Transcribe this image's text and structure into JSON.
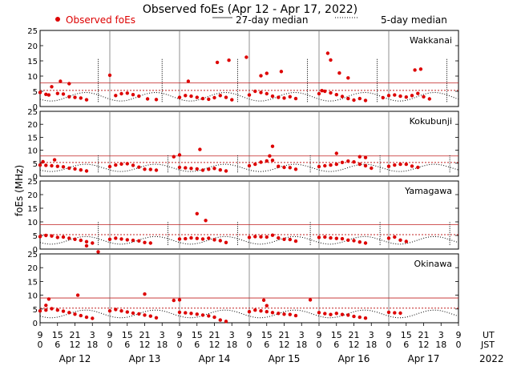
{
  "chart_data": {
    "type": "scatter",
    "title": "Observed foEs (Apr 12 - Apr 17, 2022)",
    "ylabel": "foEs (MHz)",
    "ylim": [
      0,
      25
    ],
    "yticks": [
      0,
      5,
      10,
      15,
      20,
      25
    ],
    "xlim_hours": [
      0,
      144
    ],
    "legend": [
      {
        "key": "observed",
        "label": "Observed foEs",
        "color": "#dd0000"
      },
      {
        "key": "median27",
        "label": "27-day median"
      },
      {
        "key": "median5",
        "label": "5-day median"
      }
    ],
    "x_tick_labels_ut": [
      "9",
      "15",
      "21",
      "3",
      "9",
      "15",
      "21",
      "3",
      "9",
      "15",
      "21",
      "3",
      "9",
      "15",
      "21",
      "3",
      "9",
      "15",
      "21",
      "3",
      "9",
      "15",
      "21",
      "3",
      "9"
    ],
    "x_tick_labels_jst": [
      "0",
      "6",
      "12",
      "18",
      "0",
      "6",
      "12",
      "18",
      "0",
      "6",
      "12",
      "18",
      "0",
      "6",
      "12",
      "18",
      "0",
      "6",
      "12",
      "18",
      "0",
      "6",
      "12",
      "18",
      "0"
    ],
    "x_tick_hours": [
      0,
      6,
      12,
      18,
      24,
      30,
      36,
      42,
      48,
      54,
      60,
      66,
      72,
      78,
      84,
      90,
      96,
      102,
      108,
      114,
      120,
      126,
      132,
      138,
      144
    ],
    "ut_label": "UT",
    "jst_label": "JST",
    "dates": [
      "Apr 12",
      "Apr 13",
      "Apr 14",
      "Apr 15",
      "Apr 16",
      "Apr 17"
    ],
    "year": "2022",
    "stations": [
      {
        "name": "Wakkanai",
        "upper_line": 7.8,
        "median_level": 5.3,
        "spike_hours": [
          20,
          42,
          68,
          92,
          116,
          140
        ],
        "outliers": [
          [
            4,
            6.5
          ],
          [
            7,
            8.3
          ],
          [
            10,
            7.5
          ],
          [
            24,
            10.3
          ],
          [
            51,
            8.3
          ],
          [
            61,
            14.5
          ],
          [
            65,
            15.2
          ],
          [
            71,
            16.2
          ],
          [
            76,
            10.1
          ],
          [
            78,
            10.9
          ],
          [
            83,
            11.5
          ],
          [
            99,
            17.5
          ],
          [
            100,
            15.3
          ],
          [
            103,
            11.0
          ],
          [
            106,
            9.4
          ],
          [
            129,
            12.0
          ],
          [
            131,
            12.3
          ]
        ],
        "observed": [
          [
            0,
            4.6
          ],
          [
            2,
            4.0
          ],
          [
            3,
            3.8
          ],
          [
            6,
            4.3
          ],
          [
            8,
            4.1
          ],
          [
            10,
            3.2
          ],
          [
            12,
            3.0
          ],
          [
            14,
            2.8
          ],
          [
            16,
            2.2
          ],
          [
            26,
            3.6
          ],
          [
            28,
            4.2
          ],
          [
            30,
            4.4
          ],
          [
            32,
            3.9
          ],
          [
            34,
            3.4
          ],
          [
            37,
            2.5
          ],
          [
            40,
            2.3
          ],
          [
            48,
            3.0
          ],
          [
            50,
            3.6
          ],
          [
            52,
            3.4
          ],
          [
            54,
            3.0
          ],
          [
            56,
            2.6
          ],
          [
            58,
            2.4
          ],
          [
            60,
            2.9
          ],
          [
            62,
            3.6
          ],
          [
            64,
            3.0
          ],
          [
            66,
            2.2
          ],
          [
            72,
            3.8
          ],
          [
            74,
            5.0
          ],
          [
            76,
            4.6
          ],
          [
            78,
            4.2
          ],
          [
            80,
            3.4
          ],
          [
            82,
            3.0
          ],
          [
            84,
            2.8
          ],
          [
            86,
            3.2
          ],
          [
            88,
            2.6
          ],
          [
            96,
            4.2
          ],
          [
            97,
            5.2
          ],
          [
            98,
            5.0
          ],
          [
            100,
            4.5
          ],
          [
            102,
            3.9
          ],
          [
            104,
            3.3
          ],
          [
            106,
            2.6
          ],
          [
            108,
            2.1
          ],
          [
            110,
            2.6
          ],
          [
            112,
            2.0
          ],
          [
            118,
            2.9
          ],
          [
            120,
            3.6
          ],
          [
            122,
            3.8
          ],
          [
            124,
            3.4
          ],
          [
            126,
            3.1
          ],
          [
            128,
            3.6
          ],
          [
            130,
            4.3
          ],
          [
            132,
            3.2
          ],
          [
            134,
            2.5
          ]
        ]
      },
      {
        "name": "Kokubunji",
        "upper_line": 7.8,
        "median_level": 5.3,
        "spike_hours": [
          20,
          44,
          68,
          93,
          117,
          141
        ],
        "outliers": [
          [
            1,
            5.6
          ],
          [
            5,
            6.3
          ],
          [
            46,
            7.5
          ],
          [
            48,
            8.2
          ],
          [
            55,
            10.3
          ],
          [
            80,
            11.5
          ],
          [
            79,
            7.8
          ],
          [
            102,
            8.8
          ],
          [
            110,
            7.5
          ],
          [
            112,
            7.2
          ]
        ],
        "observed": [
          [
            0,
            4.3
          ],
          [
            2,
            4.2
          ],
          [
            4,
            4.0
          ],
          [
            6,
            3.8
          ],
          [
            8,
            3.6
          ],
          [
            10,
            3.1
          ],
          [
            12,
            2.8
          ],
          [
            14,
            2.4
          ],
          [
            16,
            2.0
          ],
          [
            24,
            3.7
          ],
          [
            26,
            4.3
          ],
          [
            28,
            4.7
          ],
          [
            30,
            4.8
          ],
          [
            32,
            4.2
          ],
          [
            34,
            3.5
          ],
          [
            36,
            2.7
          ],
          [
            38,
            2.6
          ],
          [
            40,
            2.3
          ],
          [
            48,
            3.4
          ],
          [
            50,
            3.2
          ],
          [
            52,
            3.0
          ],
          [
            54,
            2.8
          ],
          [
            56,
            2.3
          ],
          [
            58,
            2.7
          ],
          [
            60,
            3.0
          ],
          [
            62,
            2.4
          ],
          [
            64,
            2.0
          ],
          [
            72,
            4.0
          ],
          [
            74,
            4.6
          ],
          [
            76,
            5.4
          ],
          [
            78,
            5.9
          ],
          [
            80,
            6.1
          ],
          [
            82,
            3.8
          ],
          [
            84,
            3.4
          ],
          [
            86,
            3.3
          ],
          [
            88,
            2.7
          ],
          [
            96,
            3.7
          ],
          [
            98,
            4.0
          ],
          [
            100,
            4.3
          ],
          [
            102,
            4.6
          ],
          [
            104,
            5.3
          ],
          [
            106,
            5.8
          ],
          [
            108,
            5.5
          ],
          [
            110,
            4.6
          ],
          [
            112,
            4.0
          ],
          [
            114,
            3.1
          ],
          [
            120,
            3.8
          ],
          [
            122,
            4.3
          ],
          [
            124,
            4.6
          ],
          [
            126,
            4.6
          ],
          [
            128,
            3.9
          ],
          [
            130,
            3.4
          ]
        ]
      },
      {
        "name": "Yamagawa",
        "upper_line": 9.0,
        "median_level": 5.3,
        "spike_hours": [
          20,
          44,
          68,
          93,
          117,
          141
        ],
        "outliers": [
          [
            16,
            1.2
          ],
          [
            20,
            -1.0
          ],
          [
            54,
            13.0
          ],
          [
            57,
            10.5
          ]
        ],
        "observed": [
          [
            0,
            4.6
          ],
          [
            2,
            5.0
          ],
          [
            4,
            4.8
          ],
          [
            6,
            4.3
          ],
          [
            8,
            4.4
          ],
          [
            10,
            4.0
          ],
          [
            12,
            3.6
          ],
          [
            14,
            3.2
          ],
          [
            16,
            2.7
          ],
          [
            18,
            2.2
          ],
          [
            24,
            3.6
          ],
          [
            26,
            4.0
          ],
          [
            28,
            3.7
          ],
          [
            30,
            3.4
          ],
          [
            32,
            3.2
          ],
          [
            34,
            3.0
          ],
          [
            36,
            2.4
          ],
          [
            38,
            2.2
          ],
          [
            48,
            3.7
          ],
          [
            50,
            3.8
          ],
          [
            52,
            4.1
          ],
          [
            54,
            3.9
          ],
          [
            56,
            3.7
          ],
          [
            58,
            4.0
          ],
          [
            60,
            3.4
          ],
          [
            62,
            3.1
          ],
          [
            64,
            2.4
          ],
          [
            72,
            4.3
          ],
          [
            74,
            4.6
          ],
          [
            76,
            4.5
          ],
          [
            78,
            4.4
          ],
          [
            80,
            5.1
          ],
          [
            82,
            4.1
          ],
          [
            84,
            3.6
          ],
          [
            86,
            3.5
          ],
          [
            88,
            2.9
          ],
          [
            96,
            4.3
          ],
          [
            98,
            4.4
          ],
          [
            100,
            4.1
          ],
          [
            102,
            3.9
          ],
          [
            104,
            3.8
          ],
          [
            106,
            3.3
          ],
          [
            108,
            3.1
          ],
          [
            110,
            2.6
          ],
          [
            112,
            2.2
          ],
          [
            120,
            4.0
          ],
          [
            122,
            4.4
          ],
          [
            124,
            3.3
          ],
          [
            126,
            2.8
          ]
        ]
      },
      {
        "name": "Okinawa",
        "upper_line": 9.0,
        "median_level": 5.3,
        "spike_hours": [],
        "outliers": [
          [
            2,
            6.3
          ],
          [
            3,
            8.6
          ],
          [
            13,
            10.0
          ],
          [
            36,
            10.4
          ],
          [
            46,
            8.1
          ],
          [
            48,
            8.3
          ],
          [
            77,
            8.2
          ],
          [
            93,
            8.3
          ],
          [
            78,
            6.2
          ]
        ],
        "observed": [
          [
            0,
            4.3
          ],
          [
            2,
            4.6
          ],
          [
            4,
            5.1
          ],
          [
            6,
            4.6
          ],
          [
            8,
            4.2
          ],
          [
            10,
            3.7
          ],
          [
            12,
            3.1
          ],
          [
            14,
            2.6
          ],
          [
            16,
            2.0
          ],
          [
            18,
            1.6
          ],
          [
            24,
            4.3
          ],
          [
            26,
            4.8
          ],
          [
            28,
            4.3
          ],
          [
            30,
            3.9
          ],
          [
            32,
            3.5
          ],
          [
            34,
            3.2
          ],
          [
            36,
            2.8
          ],
          [
            38,
            2.4
          ],
          [
            40,
            1.8
          ],
          [
            48,
            3.8
          ],
          [
            50,
            3.6
          ],
          [
            52,
            3.4
          ],
          [
            54,
            3.1
          ],
          [
            56,
            2.8
          ],
          [
            58,
            2.5
          ],
          [
            60,
            2.0
          ],
          [
            62,
            1.0
          ],
          [
            64,
            0.5
          ],
          [
            72,
            4.0
          ],
          [
            74,
            4.6
          ],
          [
            76,
            4.3
          ],
          [
            78,
            4.0
          ],
          [
            80,
            3.7
          ],
          [
            82,
            3.4
          ],
          [
            84,
            3.1
          ],
          [
            86,
            3.0
          ],
          [
            88,
            2.6
          ],
          [
            96,
            3.7
          ],
          [
            98,
            3.3
          ],
          [
            100,
            3.0
          ],
          [
            102,
            3.4
          ],
          [
            104,
            3.0
          ],
          [
            106,
            2.8
          ],
          [
            108,
            2.3
          ],
          [
            110,
            2.0
          ],
          [
            112,
            1.7
          ],
          [
            120,
            3.8
          ],
          [
            122,
            3.6
          ],
          [
            124,
            3.5
          ]
        ]
      }
    ]
  }
}
